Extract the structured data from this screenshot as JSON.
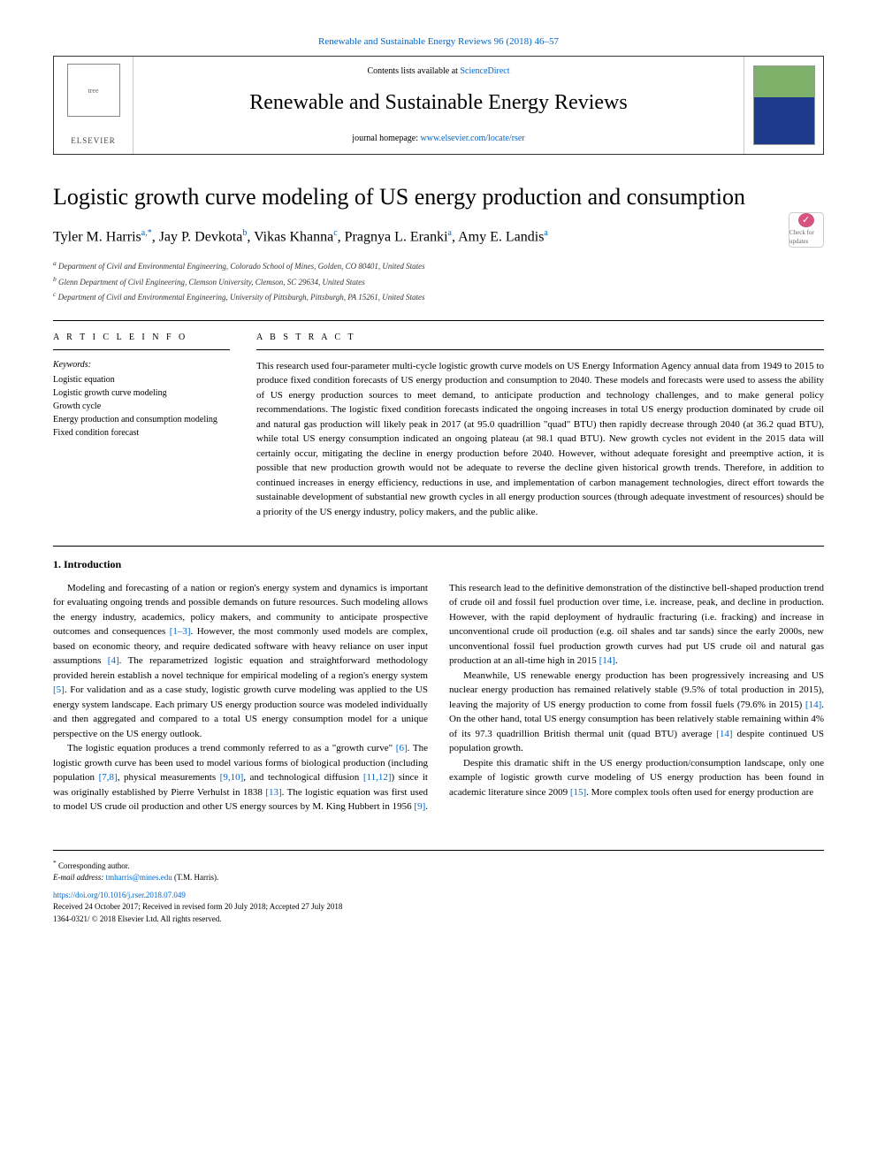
{
  "header": {
    "citation_link": "Renewable and Sustainable Energy Reviews 96 (2018) 46–57",
    "contents_line_prefix": "Contents lists available at ",
    "contents_line_link": "ScienceDirect",
    "journal_name": "Renewable and Sustainable Energy Reviews",
    "homepage_prefix": "journal homepage: ",
    "homepage_link": "www.elsevier.com/locate/rser",
    "publisher_logo": "ELSEVIER",
    "tree_alt": "tree"
  },
  "check_updates": "Check for updates",
  "title": "Logistic growth curve modeling of US energy production and consumption",
  "authors_html": "Tyler M. Harris",
  "authors": [
    {
      "name": "Tyler M. Harris",
      "sup": "a,*"
    },
    {
      "name": "Jay P. Devkota",
      "sup": "b"
    },
    {
      "name": "Vikas Khanna",
      "sup": "c"
    },
    {
      "name": "Pragnya L. Eranki",
      "sup": "a"
    },
    {
      "name": "Amy E. Landis",
      "sup": "a"
    }
  ],
  "affiliations": [
    {
      "sup": "a",
      "text": "Department of Civil and Environmental Engineering, Colorado School of Mines, Golden, CO 80401, United States"
    },
    {
      "sup": "b",
      "text": "Glenn Department of Civil Engineering, Clemson University, Clemson, SC 29634, United States"
    },
    {
      "sup": "c",
      "text": "Department of Civil and Environmental Engineering, University of Pittsburgh, Pittsburgh, PA 15261, United States"
    }
  ],
  "info": {
    "heading": "A R T I C L E  I N F O",
    "keywords_label": "Keywords:",
    "keywords": [
      "Logistic equation",
      "Logistic growth curve modeling",
      "Growth cycle",
      "Energy production and consumption modeling",
      "Fixed condition forecast"
    ]
  },
  "abstract": {
    "heading": "A B S T R A C T",
    "text": "This research used four-parameter multi-cycle logistic growth curve models on US Energy Information Agency annual data from 1949 to 2015 to produce fixed condition forecasts of US energy production and consumption to 2040. These models and forecasts were used to assess the ability of US energy production sources to meet demand, to anticipate production and technology challenges, and to make general policy recommendations. The logistic fixed condition forecasts indicated the ongoing increases in total US energy production dominated by crude oil and natural gas production will likely peak in 2017 (at 95.0 quadrillion \"quad\" BTU) then rapidly decrease through 2040 (at 36.2 quad BTU), while total US energy consumption indicated an ongoing plateau (at 98.1 quad BTU). New growth cycles not evident in the 2015 data will certainly occur, mitigating the decline in energy production before 2040. However, without adequate foresight and preemptive action, it is possible that new production growth would not be adequate to reverse the decline given historical growth trends. Therefore, in addition to continued increases in energy efficiency, reductions in use, and implementation of carbon management technologies, direct effort towards the sustainable development of substantial new growth cycles in all energy production sources (through adequate investment of resources) should be a priority of the US energy industry, policy makers, and the public alike."
  },
  "intro": {
    "heading": "1. Introduction",
    "p1": "Modeling and forecasting of a nation or region's energy system and dynamics is important for evaluating ongoing trends and possible demands on future resources. Such modeling allows the energy industry, academics, policy makers, and community to anticipate prospective outcomes and consequences ",
    "r1": "[1–3]",
    "p1b": ". However, the most commonly used models are complex, based on economic theory, and require dedicated software with heavy reliance on user input assumptions ",
    "r2": "[4]",
    "p1c": ". The reparametrized logistic equation and straightforward methodology provided herein establish a novel technique for empirical modeling of a region's energy system ",
    "r3": "[5]",
    "p1d": ". For validation and as a case study, logistic growth curve modeling was applied to the US energy system landscape. Each primary US energy production source was modeled individually and then aggregated and compared to a total US energy consumption model for a unique perspective on the US energy outlook.",
    "p2a": "The logistic equation produces a trend commonly referred to as a \"growth curve\" ",
    "r4": "[6]",
    "p2b": ". The logistic growth curve has been used to model various forms of biological production (including population ",
    "r5": "[7,8]",
    "p2c": ", physical measurements ",
    "r6": "[9,10]",
    "p2d": ", and technological diffusion ",
    "r7": "[11,12]",
    "p2e": ") since it was originally established by Pierre Verhulst in 1838 ",
    "r8": "[13]",
    "p2f": ". The logistic equation was first used to model US crude oil production and other US energy sources by M. King Hubbert in 1956 ",
    "r9": "[9]",
    "p2g": ". This research lead to the definitive demonstration of the distinctive bell-shaped production trend of crude oil and fossil fuel production over time, i.e. increase, peak, and decline in production. However, with the rapid deployment of hydraulic fracturing (i.e. fracking) and increase in unconventional crude oil production (e.g. oil shales and tar sands) since the early 2000s, new unconventional fossil fuel production growth curves had put US crude oil and natural gas production at an all-time high in 2015 ",
    "r10": "[14]",
    "p2h": ".",
    "p3a": "Meanwhile, US renewable energy production has been progressively increasing and US nuclear energy production has remained relatively stable (9.5% of total production in 2015), leaving the majority of US energy production to come from fossil fuels (79.6% in 2015) ",
    "r11": "[14]",
    "p3b": ". On the other hand, total US energy consumption has been relatively stable remaining within 4% of its 97.3 quadrillion British thermal unit (quad BTU) average ",
    "r12": "[14]",
    "p3c": " despite continued US population growth.",
    "p4a": "Despite this dramatic shift in the US energy production/consumption landscape, only one example of logistic growth curve modeling of US energy production has been found in academic literature since 2009 ",
    "r13": "[15]",
    "p4b": ". More complex tools often used for energy production are"
  },
  "footer": {
    "corr_symbol": "*",
    "corr_text": " Corresponding author.",
    "email_label": "E-mail address: ",
    "email": "tmharris@mines.edu",
    "email_suffix": " (T.M. Harris).",
    "doi": "https://doi.org/10.1016/j.rser.2018.07.049",
    "received": "Received 24 October 2017; Received in revised form 20 July 2018; Accepted 27 July 2018",
    "issn": "1364-0321/ © 2018 Elsevier Ltd. All rights reserved."
  },
  "colors": {
    "link": "#0066cc",
    "rule": "#000000",
    "badge": "#d4537f"
  }
}
